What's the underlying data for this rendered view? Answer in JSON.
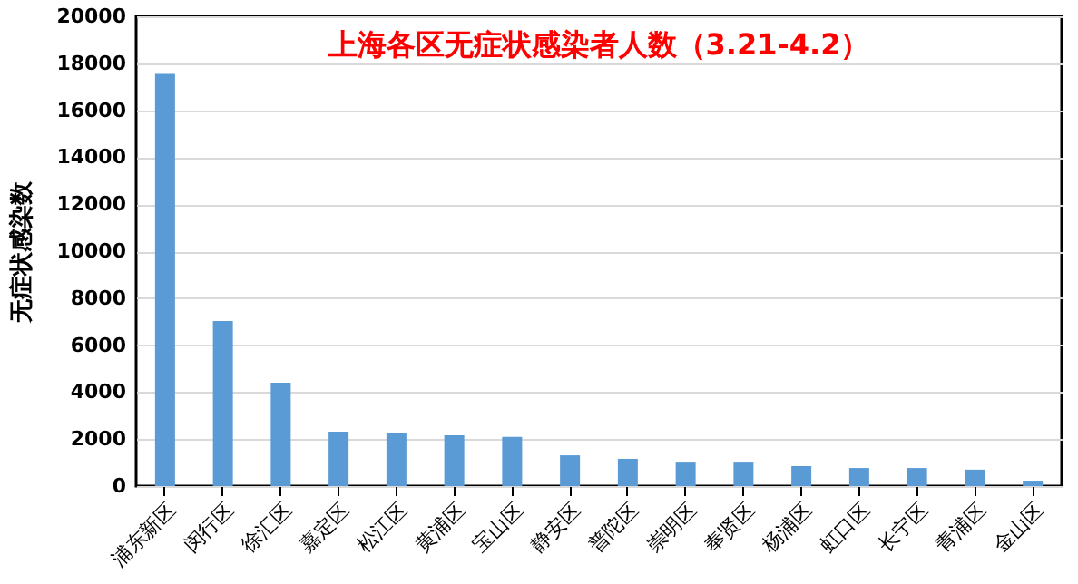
{
  "chart_data": {
    "type": "bar",
    "title": "上海各区无症状感染者人数（3.21-4.2）",
    "ylabel": "无症状感染数",
    "categories": [
      "浦东新区",
      "闵行区",
      "徐汇区",
      "嘉定区",
      "松江区",
      "黄浦区",
      "宝山区",
      "静安区",
      "普陀区",
      "崇明区",
      "奉贤区",
      "杨浦区",
      "虹口区",
      "长宁区",
      "青浦区",
      "金山区"
    ],
    "values": [
      17550,
      7030,
      4400,
      2320,
      2240,
      2160,
      2090,
      1310,
      1160,
      1000,
      1000,
      850,
      770,
      770,
      700,
      230
    ],
    "color": "#5b9bd5",
    "ylim": [
      0,
      20000
    ],
    "yticks": [
      0,
      2000,
      4000,
      6000,
      8000,
      10000,
      12000,
      14000,
      16000,
      18000,
      20000
    ],
    "grid": "y"
  }
}
